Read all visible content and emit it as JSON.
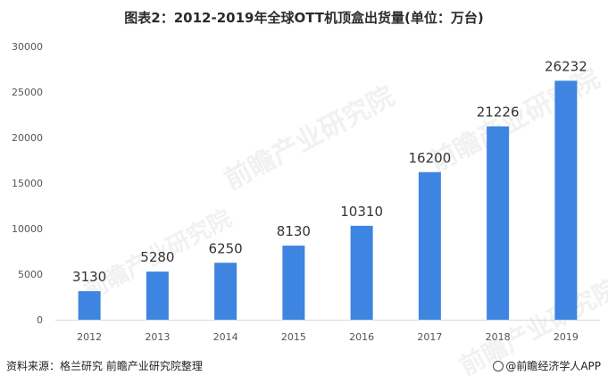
{
  "title": "图表2：2012-2019年全球OTT机顶盒出货量(单位：万台)",
  "source": "资料来源：格兰研究 前瞻产业研究院整理",
  "credit": "@前瞻经济学人APP",
  "watermark": "前瞻产业研究院",
  "colors": {
    "bar": "#3d85e0",
    "axis_text": "#555555",
    "label": "#333333",
    "axis_line": "#d9d9d9"
  },
  "chart_data": {
    "type": "bar",
    "categories": [
      "2012",
      "2013",
      "2014",
      "2015",
      "2016",
      "2017",
      "2018",
      "2019"
    ],
    "values": [
      3130,
      5280,
      6250,
      8130,
      10310,
      16200,
      21226,
      26232
    ],
    "ylim": [
      0,
      30000
    ],
    "yticks": [
      0,
      5000,
      10000,
      15000,
      20000,
      25000,
      30000
    ],
    "grid": false,
    "data_labels": true
  }
}
